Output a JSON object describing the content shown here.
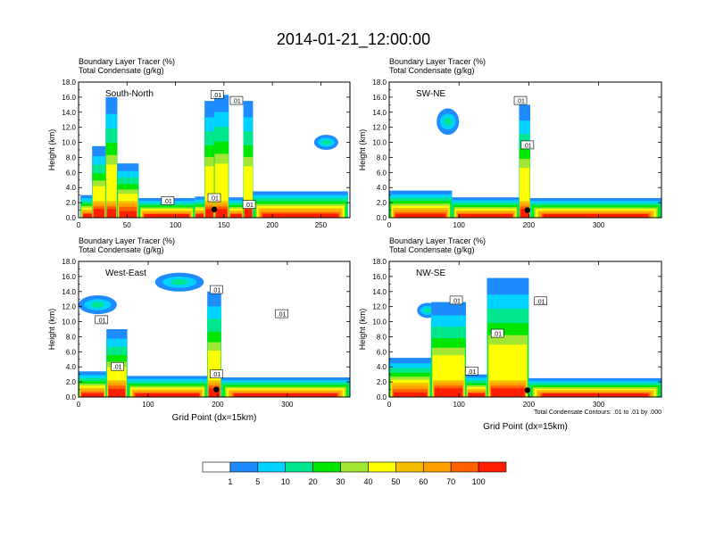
{
  "page": {
    "title": "2014-01-21_12:00:00"
  },
  "chart_data": [
    {
      "type": "heatmap",
      "panel_label": "South-North",
      "left_title_1": "Boundary Layer Tracer   (%)",
      "left_title_2": "Total Condensate   (g/kg)",
      "xlabel": "",
      "ylabel": "Height (km)",
      "xlim": [
        0,
        280
      ],
      "ylim": [
        0,
        18
      ],
      "xticks": [
        0,
        50,
        100,
        150,
        200,
        250
      ],
      "xtick_labels": [
        "0",
        "50",
        "100",
        "150",
        "200",
        "250"
      ],
      "yticks": [
        0,
        2,
        4,
        6,
        8,
        10,
        12,
        14,
        16,
        18
      ],
      "ytick_labels": [
        "0.0",
        "2.0",
        "4.0",
        "6.0",
        "8.0",
        "10.0",
        "12.0",
        "14.0",
        "16.0",
        "18.0"
      ],
      "contour_labels": [
        {
          "text": ".01",
          "x": 143,
          "y": 16.3
        },
        {
          "text": ".01",
          "x": 163,
          "y": 15.5
        },
        {
          "text": ".01",
          "x": 92,
          "y": 2.2
        },
        {
          "text": ".01",
          "x": 140,
          "y": 2.6
        },
        {
          "text": ".01",
          "x": 176,
          "y": 1.7
        }
      ],
      "marker": {
        "x": 140,
        "y": 1.1
      },
      "columns": [
        {
          "x0": 2,
          "x1": 28,
          "top": 3.0
        },
        {
          "x0": 14,
          "x1": 28,
          "top": 9.5
        },
        {
          "x0": 28,
          "x1": 40,
          "top": 16.0
        },
        {
          "x0": 40,
          "x1": 62,
          "top": 7.2
        },
        {
          "x0": 62,
          "x1": 120,
          "top": 2.6
        },
        {
          "x0": 120,
          "x1": 130,
          "top": 2.8
        },
        {
          "x0": 130,
          "x1": 140,
          "top": 15.5
        },
        {
          "x0": 140,
          "x1": 155,
          "top": 16.3
        },
        {
          "x0": 155,
          "x1": 170,
          "top": 2.7
        },
        {
          "x0": 170,
          "x1": 180,
          "top": 15.5
        },
        {
          "x0": 180,
          "x1": 278,
          "top": 3.5
        }
      ],
      "cloud_patches": [
        {
          "x0": 243,
          "x1": 268,
          "y0": 9.0,
          "y1": 11.0
        }
      ]
    },
    {
      "type": "heatmap",
      "panel_label": "SW-NE",
      "left_title_1": "Boundary Layer Tracer   (%)",
      "left_title_2": "Total Condensate   (g/kg)",
      "xlabel": "",
      "ylabel": "Height (km)",
      "xlim": [
        0,
        390
      ],
      "ylim": [
        0,
        18
      ],
      "xticks": [
        0,
        100,
        200,
        300
      ],
      "xtick_labels": [
        "0",
        "100",
        "200",
        "300"
      ],
      "yticks": [
        0,
        2,
        4,
        6,
        8,
        10,
        12,
        14,
        16,
        18
      ],
      "ytick_labels": [
        "0.0",
        "2.0",
        "4.0",
        "6.0",
        "8.0",
        "10.0",
        "12.0",
        "14.0",
        "16.0",
        "18.0"
      ],
      "contour_labels": [
        {
          "text": ".01",
          "x": 188,
          "y": 15.5
        },
        {
          "text": ".01",
          "x": 198,
          "y": 9.6
        }
      ],
      "marker": {
        "x": 198,
        "y": 1.0
      },
      "columns": [
        {
          "x0": 0,
          "x1": 90,
          "top": 3.6
        },
        {
          "x0": 90,
          "x1": 186,
          "top": 2.7
        },
        {
          "x0": 186,
          "x1": 202,
          "top": 15.0
        },
        {
          "x0": 202,
          "x1": 390,
          "top": 2.6
        }
      ],
      "cloud_patches": [
        {
          "x0": 68,
          "x1": 100,
          "y0": 11.0,
          "y1": 14.5
        }
      ]
    },
    {
      "type": "heatmap",
      "panel_label": "West-East",
      "left_title_1": "Boundary Layer Tracer   (%)",
      "left_title_2": "Total Condensate   (g/kg)",
      "xlabel": "Grid Point (dx=15km)",
      "ylabel": "Height (km)",
      "xlim": [
        0,
        390
      ],
      "ylim": [
        0,
        18
      ],
      "xticks": [
        0,
        100,
        200,
        300
      ],
      "xtick_labels": [
        "0",
        "100",
        "200",
        "300"
      ],
      "yticks": [
        0,
        2,
        4,
        6,
        8,
        10,
        12,
        14,
        16,
        18
      ],
      "ytick_labels": [
        "0.0",
        "2.0",
        "4.0",
        "6.0",
        "8.0",
        "10.0",
        "12.0",
        "14.0",
        "16.0",
        "18.0"
      ],
      "contour_labels": [
        {
          "text": ".01",
          "x": 33,
          "y": 10.2
        },
        {
          "text": ".01",
          "x": 198,
          "y": 14.2
        },
        {
          "text": ".01",
          "x": 292,
          "y": 11.0
        },
        {
          "text": ".01",
          "x": 56,
          "y": 4.0
        },
        {
          "text": ".01",
          "x": 198,
          "y": 3.0
        }
      ],
      "marker": {
        "x": 198,
        "y": 1.0
      },
      "columns": [
        {
          "x0": 0,
          "x1": 40,
          "top": 3.4
        },
        {
          "x0": 40,
          "x1": 70,
          "top": 9.0
        },
        {
          "x0": 70,
          "x1": 185,
          "top": 2.8
        },
        {
          "x0": 185,
          "x1": 205,
          "top": 14.0
        },
        {
          "x0": 205,
          "x1": 390,
          "top": 2.6
        }
      ],
      "cloud_patches": [
        {
          "x0": 0,
          "x1": 55,
          "y0": 11.0,
          "y1": 13.5
        },
        {
          "x0": 110,
          "x1": 180,
          "y0": 14.0,
          "y1": 16.5
        }
      ]
    },
    {
      "type": "heatmap",
      "panel_label": "NW-SE",
      "left_title_1": "Boundary Layer Tracer   (%)",
      "left_title_2": "Total Condensate   (g/kg)",
      "xlabel": "Grid Point (dx=15km)",
      "ylabel": "Height (km)",
      "note": "Total Condensate Contours: .01 to .01 by .000",
      "xlim": [
        0,
        390
      ],
      "ylim": [
        0,
        18
      ],
      "xticks": [
        0,
        100,
        200,
        300
      ],
      "xtick_labels": [
        "0",
        "100",
        "200",
        "300"
      ],
      "yticks": [
        0,
        2,
        4,
        6,
        8,
        10,
        12,
        14,
        16,
        18
      ],
      "ytick_labels": [
        "0.0",
        "2.0",
        "4.0",
        "6.0",
        "8.0",
        "10.0",
        "12.0",
        "14.0",
        "16.0",
        "18.0"
      ],
      "contour_labels": [
        {
          "text": ".01",
          "x": 96,
          "y": 12.8
        },
        {
          "text": ".01",
          "x": 217,
          "y": 12.7
        },
        {
          "text": ".01",
          "x": 155,
          "y": 8.4
        },
        {
          "text": ".01",
          "x": 118,
          "y": 3.4
        }
      ],
      "marker": {
        "x": 198,
        "y": 0.9
      },
      "columns": [
        {
          "x0": 0,
          "x1": 60,
          "top": 5.2
        },
        {
          "x0": 60,
          "x1": 110,
          "top": 12.6
        },
        {
          "x0": 110,
          "x1": 140,
          "top": 3.0
        },
        {
          "x0": 140,
          "x1": 200,
          "top": 15.8
        },
        {
          "x0": 200,
          "x1": 390,
          "top": 2.5
        }
      ],
      "cloud_patches": [
        {
          "x0": 40,
          "x1": 70,
          "y0": 10.5,
          "y1": 12.5
        }
      ]
    }
  ],
  "colorbar": {
    "labels": [
      "1",
      "5",
      "10",
      "20",
      "30",
      "40",
      "50",
      "60",
      "70",
      "100"
    ],
    "colors": [
      "#ffffff",
      "#1e8cff",
      "#00d2ff",
      "#00e68c",
      "#00e600",
      "#a0e632",
      "#ffff00",
      "#f5be00",
      "#ffa000",
      "#ff6000",
      "#ff1e00"
    ]
  },
  "bl_colors": {
    "c1": "#1e8cff",
    "c2": "#00d2ff",
    "c3": "#00e68c",
    "c4": "#00e600",
    "c5": "#a0e632",
    "c6": "#ffff00",
    "c7": "#f5be00",
    "c8": "#ffa000",
    "c9": "#ff6000",
    "c10": "#ff1e00"
  }
}
